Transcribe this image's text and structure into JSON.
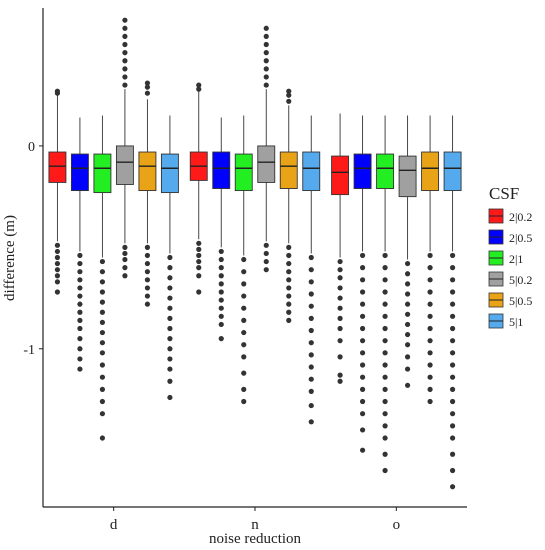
{
  "chart_data": {
    "type": "boxplot",
    "xlabel": "noise reduction",
    "ylabel": "difference (m)",
    "categories": [
      "d",
      "n",
      "o"
    ],
    "y_ticks": [
      0,
      -1
    ],
    "y_tick_labels": [
      "0",
      "-1"
    ],
    "ylim": [
      -1.78,
      0.68
    ],
    "legend": {
      "title": "CSF",
      "position": "right"
    },
    "series": [
      {
        "name": "2|0.2",
        "color": "#ff1a1a",
        "boxes": [
          {
            "q1": -0.18,
            "median": -0.1,
            "q3": -0.03,
            "whisker_low": -0.47,
            "whisker_high": 0.25,
            "outliers_low": [
              -0.49,
              -0.52,
              -0.55,
              -0.58,
              -0.61,
              -0.64,
              -0.67,
              -0.72
            ],
            "outliers_high": [
              0.26,
              0.27
            ]
          },
          {
            "q1": -0.17,
            "median": -0.1,
            "q3": -0.03,
            "whisker_low": -0.46,
            "whisker_high": 0.27,
            "outliers_low": [
              -0.48,
              -0.51,
              -0.54,
              -0.57,
              -0.6,
              -0.64,
              -0.72
            ],
            "outliers_high": [
              0.28,
              0.3
            ]
          },
          {
            "q1": -0.24,
            "median": -0.13,
            "q3": -0.05,
            "whisker_low": -0.55,
            "whisker_high": 0.16,
            "outliers_low": [
              -0.57,
              -0.61,
              -0.65,
              -0.7,
              -0.75,
              -0.8,
              -0.85,
              -0.9,
              -0.96,
              -1.04,
              -1.13,
              -1.16
            ]
          }
        ]
      },
      {
        "name": "2|0.5",
        "color": "#0000ff",
        "boxes": [
          {
            "q1": -0.22,
            "median": -0.11,
            "q3": -0.04,
            "whisker_low": -0.52,
            "whisker_high": 0.14,
            "outliers_low": [
              -0.54,
              -0.58,
              -0.62,
              -0.66,
              -0.7,
              -0.74,
              -0.78,
              -0.82,
              -0.86,
              -0.9,
              -0.95,
              -1.0,
              -1.05,
              -1.1
            ]
          },
          {
            "q1": -0.21,
            "median": -0.11,
            "q3": -0.03,
            "whisker_low": -0.5,
            "whisker_high": 0.14,
            "outliers_low": [
              -0.52,
              -0.56,
              -0.6,
              -0.64,
              -0.68,
              -0.72,
              -0.76,
              -0.8,
              -0.84,
              -0.88,
              -0.95
            ]
          },
          {
            "q1": -0.21,
            "median": -0.11,
            "q3": -0.04,
            "whisker_low": -0.52,
            "whisker_high": 0.15,
            "outliers_low": [
              -0.54,
              -0.6,
              -0.66,
              -0.72,
              -0.78,
              -0.84,
              -0.9,
              -0.96,
              -1.02,
              -1.08,
              -1.14,
              -1.2,
              -1.26,
              -1.32,
              -1.4,
              -1.5
            ]
          }
        ]
      },
      {
        "name": "2|1",
        "color": "#22ee22",
        "boxes": [
          {
            "q1": -0.23,
            "median": -0.11,
            "q3": -0.04,
            "whisker_low": -0.55,
            "whisker_high": 0.15,
            "outliers_low": [
              -0.57,
              -0.62,
              -0.67,
              -0.72,
              -0.77,
              -0.82,
              -0.87,
              -0.92,
              -0.97,
              -1.02,
              -1.08,
              -1.14,
              -1.2,
              -1.26,
              -1.32,
              -1.44
            ]
          },
          {
            "q1": -0.22,
            "median": -0.11,
            "q3": -0.04,
            "whisker_low": -0.54,
            "whisker_high": 0.15,
            "outliers_low": [
              -0.56,
              -0.62,
              -0.68,
              -0.74,
              -0.8,
              -0.86,
              -0.92,
              -0.98,
              -1.04,
              -1.12,
              -1.2,
              -1.26
            ]
          },
          {
            "q1": -0.21,
            "median": -0.11,
            "q3": -0.04,
            "whisker_low": -0.52,
            "whisker_high": 0.15,
            "outliers_low": [
              -0.54,
              -0.6,
              -0.66,
              -0.72,
              -0.78,
              -0.84,
              -0.9,
              -0.96,
              -1.02,
              -1.08,
              -1.14,
              -1.2,
              -1.26,
              -1.32,
              -1.38,
              -1.44,
              -1.52,
              -1.6
            ]
          }
        ]
      },
      {
        "name": "5|0.2",
        "color": "#a0a0a0",
        "boxes": [
          {
            "q1": -0.19,
            "median": -0.08,
            "q3": 0.0,
            "whisker_low": -0.48,
            "whisker_high": 0.28,
            "outliers_low": [
              -0.5,
              -0.53,
              -0.56,
              -0.6,
              -0.64
            ],
            "outliers_high": [
              0.3,
              0.34,
              0.38,
              0.42,
              0.46,
              0.5,
              0.54,
              0.58,
              0.62
            ]
          },
          {
            "q1": -0.18,
            "median": -0.08,
            "q3": 0.0,
            "whisker_low": -0.47,
            "whisker_high": 0.28,
            "outliers_low": [
              -0.49,
              -0.53,
              -0.57,
              -0.61
            ],
            "outliers_high": [
              0.3,
              0.34,
              0.38,
              0.42,
              0.46,
              0.5,
              0.54,
              0.58
            ]
          },
          {
            "q1": -0.25,
            "median": -0.12,
            "q3": -0.05,
            "whisker_low": -0.56,
            "whisker_high": 0.15,
            "outliers_low": [
              -0.58,
              -0.63,
              -0.68,
              -0.73,
              -0.78,
              -0.83,
              -0.88,
              -0.93,
              -0.98,
              -1.04,
              -1.1,
              -1.18
            ]
          }
        ]
      },
      {
        "name": "5|0.5",
        "color": "#e8a317",
        "boxes": [
          {
            "q1": -0.22,
            "median": -0.1,
            "q3": -0.03,
            "whisker_low": -0.48,
            "whisker_high": 0.23,
            "outliers_low": [
              -0.5,
              -0.54,
              -0.58,
              -0.62,
              -0.66,
              -0.7,
              -0.74,
              -0.78
            ],
            "outliers_high": [
              0.26,
              0.29,
              0.31
            ]
          },
          {
            "q1": -0.21,
            "median": -0.1,
            "q3": -0.03,
            "whisker_low": -0.48,
            "whisker_high": 0.2,
            "outliers_low": [
              -0.5,
              -0.54,
              -0.58,
              -0.62,
              -0.66,
              -0.7,
              -0.74,
              -0.78,
              -0.82,
              -0.86
            ],
            "outliers_high": [
              0.22,
              0.25,
              0.27
            ]
          },
          {
            "q1": -0.22,
            "median": -0.11,
            "q3": -0.03,
            "whisker_low": -0.52,
            "whisker_high": 0.15,
            "outliers_low": [
              -0.54,
              -0.6,
              -0.66,
              -0.72,
              -0.78,
              -0.84,
              -0.9,
              -0.96,
              -1.02,
              -1.08,
              -1.14,
              -1.2,
              -1.26
            ]
          }
        ]
      },
      {
        "name": "5|1",
        "color": "#55aaee",
        "boxes": [
          {
            "q1": -0.23,
            "median": -0.11,
            "q3": -0.04,
            "whisker_low": -0.53,
            "whisker_high": 0.15,
            "outliers_low": [
              -0.55,
              -0.6,
              -0.65,
              -0.7,
              -0.75,
              -0.8,
              -0.85,
              -0.9,
              -0.95,
              -1.0,
              -1.05,
              -1.1,
              -1.16,
              -1.24
            ]
          },
          {
            "q1": -0.22,
            "median": -0.11,
            "q3": -0.03,
            "whisker_low": -0.53,
            "whisker_high": 0.15,
            "outliers_low": [
              -0.55,
              -0.61,
              -0.67,
              -0.73,
              -0.79,
              -0.85,
              -0.91,
              -0.97,
              -1.03,
              -1.09,
              -1.15,
              -1.21,
              -1.28,
              -1.36
            ]
          },
          {
            "q1": -0.22,
            "median": -0.11,
            "q3": -0.03,
            "whisker_low": -0.52,
            "whisker_high": 0.15,
            "outliers_low": [
              -0.54,
              -0.6,
              -0.66,
              -0.72,
              -0.78,
              -0.84,
              -0.9,
              -0.96,
              -1.02,
              -1.08,
              -1.14,
              -1.2,
              -1.26,
              -1.32,
              -1.38,
              -1.44,
              -1.52,
              -1.6,
              -1.68
            ]
          }
        ]
      }
    ]
  }
}
